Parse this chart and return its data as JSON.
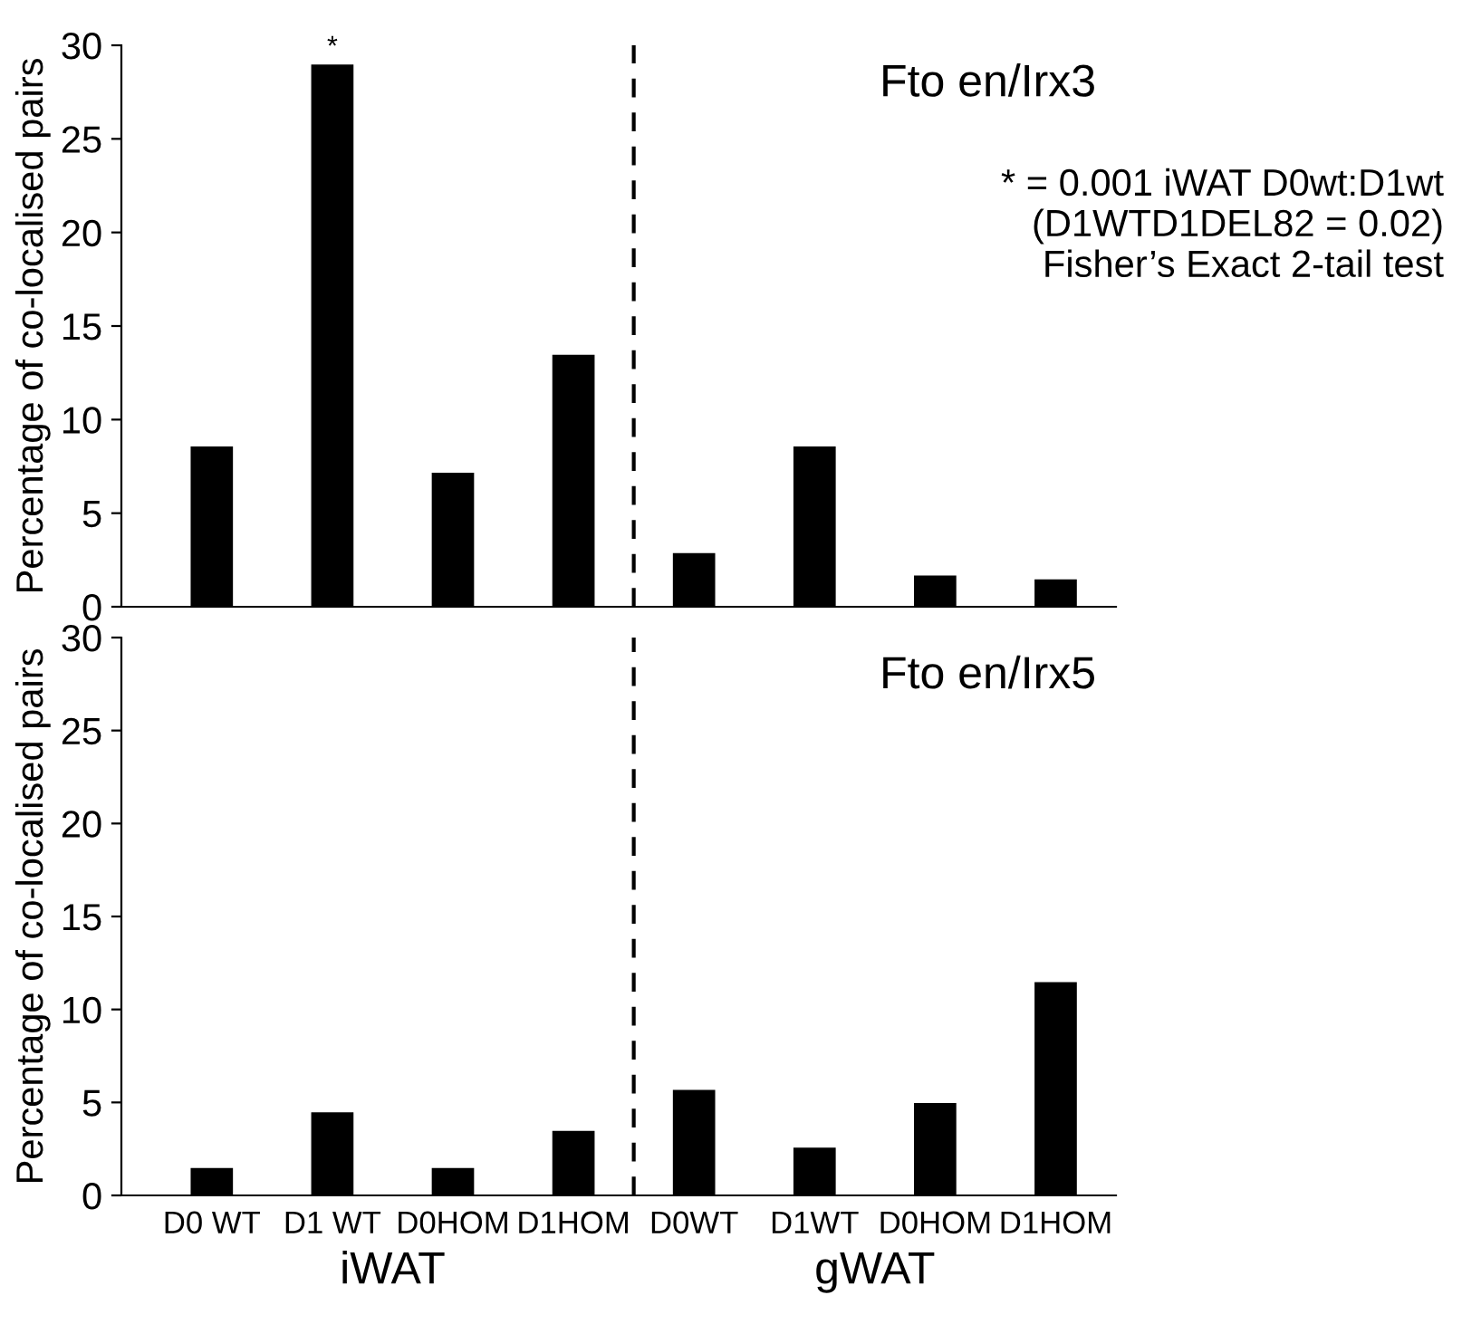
{
  "chart_data": [
    {
      "type": "bar",
      "title": "Fto en/Irx3",
      "ylabel": "Percentage of co-localised pairs",
      "categories": [
        "D0 WT",
        "D1 WT",
        "D0HOM",
        "D1HOM",
        "D0WT",
        "D1WT",
        "D0HOM",
        "D1HOM"
      ],
      "values": [
        8.5,
        28.9,
        7.1,
        13.4,
        2.8,
        8.5,
        1.6,
        1.4
      ],
      "color": "#000000",
      "ylim": [
        0,
        30
      ],
      "yticks": [
        0,
        5,
        10,
        15,
        20,
        25,
        30
      ],
      "tick_labels": "y",
      "grid": false,
      "annotations": [
        {
          "text": "*",
          "x": "D1 WT",
          "y": 28.9
        },
        "* = 0.001 iWAT D0wt:D1wt\n(D1WTD1DEL82 = 0.02)\nFisher’s Exact 2-tail test"
      ]
    },
    {
      "type": "bar",
      "title": "Fto en/Irx5",
      "ylabel": "Percentage of co-localised pairs",
      "categories": [
        "D0 WT",
        "D1 WT",
        "D0HOM",
        "D1HOM",
        "D0WT",
        "D1WT",
        "D0HOM",
        "D1HOM"
      ],
      "values": [
        1.4,
        4.4,
        1.4,
        3.4,
        5.6,
        2.5,
        4.9,
        11.4
      ],
      "color": "#000000",
      "ylim": [
        0,
        30
      ],
      "yticks": [
        0,
        5,
        10,
        15,
        20,
        25,
        30
      ],
      "grid": false,
      "annotations": [
        "iWAT",
        "gWAT"
      ]
    }
  ]
}
